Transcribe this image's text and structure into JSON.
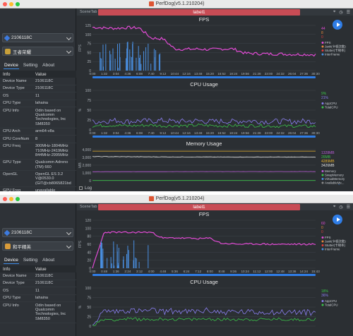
{
  "window1": {
    "title": "PerfDog(v5.1.210204)",
    "scene_tab": "SceneTab",
    "label": "label1",
    "device": "2106118C",
    "app": "王者荣耀",
    "tabs": [
      "Device",
      "Setting",
      "About"
    ],
    "info_headers": {
      "k": "Info",
      "v": "Value"
    },
    "info_rows": [
      {
        "k": "Device Name",
        "v": "2106118C"
      },
      {
        "k": "Device Type",
        "v": "2106118C"
      },
      {
        "k": "OS",
        "v": "11"
      },
      {
        "k": "CPU Type",
        "v": "lahaina"
      },
      {
        "k": "CPU Info",
        "v": "Odin based on Qualcomm Technologies, Inc SM8350"
      },
      {
        "k": "CPU Arch",
        "v": "arm64-v8a"
      },
      {
        "k": "CPU CoreNum",
        "v": "8"
      },
      {
        "k": "CPU Freq",
        "v": "300MHz-1804MHz 710MHz-2419MHz 844MHz-2995MHz"
      },
      {
        "k": "GPU Type",
        "v": "Qualcomm Adreno (TM) 660"
      },
      {
        "k": "OpenGL",
        "v": "OpenGL ES 3.2 V@0530.0 (GIT@cb8065821bd"
      },
      {
        "k": "GPU Freq",
        "v": "unavailable"
      },
      {
        "k": "Resolution",
        "v": "2400x1080"
      },
      {
        "k": "Screen Size",
        "v": "6.67 in"
      }
    ],
    "log_label": "Log",
    "fps": {
      "title": "FPS",
      "ylabel": "FPS",
      "yticks": [
        "0",
        "25",
        "50",
        "75",
        "100",
        "125"
      ],
      "xticks": [
        "0:00",
        "1:32",
        "3:04",
        "4:36",
        "6:08",
        "7:40",
        "9:12",
        "10:44",
        "12:16",
        "13:48",
        "15:20",
        "16:52",
        "18:24",
        "19:56",
        "21:28",
        "23:00",
        "24:32",
        "26:04",
        "27:36",
        "30:30"
      ],
      "end_time": "30:30",
      "values": [
        "44",
        "8",
        "0"
      ],
      "value_colors": [
        "#e14bd4",
        "#e8873a",
        "#e23b3b"
      ],
      "legend": [
        "FPS",
        "Jank(卡顿次数)",
        "Stutter(卡顿率)",
        "InterFrame"
      ],
      "legend_colors": [
        "#e14bd4",
        "#e8873a",
        "#e23b3b",
        "#4a90e2"
      ]
    },
    "cpu": {
      "title": "CPU Usage",
      "ylabel": "%",
      "yticks": [
        "0",
        "25",
        "50",
        "75",
        "100"
      ],
      "xticks": [
        "0:00",
        "1:32",
        "3:04",
        "4:36",
        "6:08",
        "7:40",
        "9:12",
        "10:44",
        "12:16",
        "13:48",
        "15:20",
        "16:52",
        "18:24",
        "19:56",
        "21:28",
        "23:00",
        "24:32",
        "26:04",
        "27:36",
        "30:30"
      ],
      "end_time": "30:30",
      "values": [
        "9%",
        "21%"
      ],
      "value_colors": [
        "#3cc34a",
        "#8a7ef0"
      ],
      "legend": [
        "AppCPU",
        "TotalCPU"
      ],
      "legend_colors": [
        "#8a7ef0",
        "#3cc34a"
      ]
    },
    "memory": {
      "title": "Memory Usage",
      "ylabel": "MB",
      "yticks": [
        "0",
        "1,000",
        "2,000",
        "3,000",
        "4,000"
      ],
      "values": [
        "1328MB",
        "26MB",
        "4289MB",
        "3426MB"
      ],
      "value_colors": [
        "#b85cd6",
        "#3cc34a",
        "#e8b22e",
        "#e3e3e3"
      ],
      "legend": [
        "Memory",
        "SwapMemory",
        "VirtualMemory",
        "AvailableMe..."
      ],
      "legend_colors": [
        "#b85cd6",
        "#3cc34a",
        "#4a90e2",
        "#8a8a8a"
      ]
    }
  },
  "window2": {
    "title": "PerfDog(v5.1.210204)",
    "scene_tab": "SceneTab",
    "label": "label1",
    "device": "2106118C",
    "app": "和平精英",
    "tabs": [
      "Device",
      "Setting",
      "About"
    ],
    "info_headers": {
      "k": "Info",
      "v": "Value"
    },
    "info_rows": [
      {
        "k": "Device Name",
        "v": "2106118C"
      },
      {
        "k": "Device Type",
        "v": "2106118C"
      },
      {
        "k": "OS",
        "v": "11"
      },
      {
        "k": "CPU Type",
        "v": "lahaina"
      },
      {
        "k": "CPU Info",
        "v": "Odin based on Qualcomm Technologies, Inc SM8350"
      }
    ],
    "fps": {
      "title": "FPS",
      "ylabel": "FPS",
      "yticks": [
        "0",
        "20",
        "40",
        "60",
        "80",
        "100",
        "120"
      ],
      "xticks": [
        "0:00",
        "0:48",
        "1:36",
        "2:24",
        "3:12",
        "4:00",
        "4:48",
        "5:36",
        "6:24",
        "7:12",
        "8:00",
        "8:48",
        "9:36",
        "10:24",
        "11:12",
        "12:00",
        "12:48",
        "13:36",
        "14:24",
        "15:43"
      ],
      "end_time": "15:43",
      "values": [
        "60",
        "0",
        "0"
      ],
      "value_colors": [
        "#e14bd4",
        "#e8873a",
        "#e23b3b"
      ],
      "legend": [
        "FPS",
        "Jank(卡顿次数)",
        "Stutter(卡顿率)",
        "InterFrame"
      ],
      "legend_colors": [
        "#e14bd4",
        "#e8873a",
        "#e23b3b",
        "#4a90e2"
      ]
    },
    "cpu": {
      "title": "CPU Usage",
      "ylabel": "%",
      "yticks": [
        "0",
        "25",
        "50",
        "75",
        "100"
      ],
      "values": [
        "18%",
        "36%"
      ],
      "value_colors": [
        "#3cc34a",
        "#8a7ef0"
      ],
      "legend": [
        "AppCPU",
        "TotalCPU"
      ],
      "legend_colors": [
        "#8a7ef0",
        "#3cc34a"
      ]
    }
  },
  "chart_data": [
    {
      "type": "line",
      "title": "FPS",
      "ylabel": "FPS",
      "ylim": [
        0,
        125
      ],
      "series": [
        {
          "name": "FPS",
          "values": [
            120,
            118,
            117,
            119,
            118,
            90,
            88,
            60,
            59,
            60,
            58,
            60,
            60,
            48,
            47,
            46,
            46,
            45,
            45,
            44
          ]
        }
      ]
    },
    {
      "type": "line",
      "title": "CPU Usage",
      "ylabel": "%",
      "ylim": [
        0,
        100
      ],
      "series": [
        {
          "name": "AppCPU",
          "values": [
            20,
            22,
            24,
            21,
            23,
            22,
            24,
            21,
            22,
            23,
            21,
            22,
            21,
            23,
            22,
            21,
            22,
            21,
            22,
            21
          ]
        },
        {
          "name": "TotalCPU",
          "values": [
            10,
            11,
            12,
            10,
            11,
            12,
            10,
            11,
            10,
            12,
            11,
            10,
            11,
            10,
            11,
            10,
            9,
            10,
            9,
            9
          ]
        }
      ]
    },
    {
      "type": "line",
      "title": "Memory Usage",
      "ylabel": "MB",
      "ylim": [
        0,
        4500
      ],
      "series": [
        {
          "name": "Memory",
          "values": [
            1300,
            1320,
            1325,
            1328
          ]
        },
        {
          "name": "SwapMemory",
          "values": [
            26,
            26,
            26,
            26
          ]
        },
        {
          "name": "VirtualMemory",
          "values": [
            4289,
            4289,
            4289,
            4289
          ]
        },
        {
          "name": "AvailableMe...",
          "values": [
            3500,
            3450,
            3430,
            3426
          ]
        }
      ]
    },
    {
      "type": "line",
      "title": "FPS",
      "ylabel": "FPS",
      "ylim": [
        0,
        120
      ],
      "series": [
        {
          "name": "FPS",
          "values": [
            0,
            90,
            90,
            89,
            90,
            90,
            75,
            76,
            75,
            74,
            75,
            62,
            61,
            60,
            61,
            60,
            60,
            60,
            60,
            60
          ]
        }
      ]
    },
    {
      "type": "line",
      "title": "CPU Usage",
      "ylabel": "%",
      "ylim": [
        0,
        100
      ],
      "series": [
        {
          "name": "AppCPU",
          "values": [
            5,
            40,
            38,
            42,
            39,
            41,
            38,
            40,
            37,
            39,
            41,
            36,
            38,
            37,
            36,
            38,
            36,
            37,
            36,
            36
          ]
        },
        {
          "name": "TotalCPU",
          "values": [
            2,
            18,
            17,
            19,
            18,
            17,
            19,
            18,
            17,
            18,
            19,
            17,
            18,
            18,
            17,
            18,
            18,
            17,
            18,
            18
          ]
        }
      ]
    }
  ]
}
